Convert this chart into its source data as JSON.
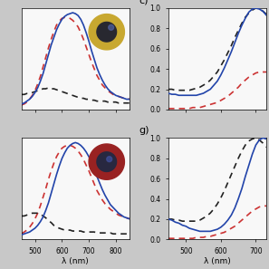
{
  "xlabel": "λ (nm)",
  "fig_bg": "#c8c8c8",
  "panel_bg": "#f8f8f8",
  "top_left": {
    "x": [
      450,
      460,
      470,
      480,
      490,
      500,
      510,
      520,
      530,
      540,
      550,
      560,
      570,
      580,
      590,
      600,
      610,
      620,
      630,
      640,
      650,
      660,
      670,
      680,
      690,
      700,
      710,
      720,
      730,
      740,
      750,
      760,
      770,
      780,
      790,
      800,
      810,
      820,
      830,
      840,
      850
    ],
    "blue_solid": [
      0.04,
      0.05,
      0.07,
      0.09,
      0.12,
      0.16,
      0.21,
      0.28,
      0.36,
      0.46,
      0.56,
      0.66,
      0.74,
      0.82,
      0.88,
      0.93,
      0.96,
      0.98,
      0.99,
      1.0,
      0.99,
      0.97,
      0.93,
      0.87,
      0.79,
      0.7,
      0.6,
      0.51,
      0.42,
      0.35,
      0.29,
      0.24,
      0.2,
      0.17,
      0.15,
      0.13,
      0.12,
      0.11,
      0.1,
      0.09,
      0.09
    ],
    "red_dashed": [
      0.03,
      0.04,
      0.06,
      0.09,
      0.13,
      0.18,
      0.25,
      0.33,
      0.43,
      0.53,
      0.63,
      0.72,
      0.8,
      0.87,
      0.91,
      0.94,
      0.95,
      0.95,
      0.94,
      0.92,
      0.89,
      0.85,
      0.79,
      0.72,
      0.64,
      0.56,
      0.48,
      0.41,
      0.34,
      0.29,
      0.24,
      0.21,
      0.18,
      0.16,
      0.14,
      0.13,
      0.12,
      0.11,
      0.1,
      0.1,
      0.09
    ],
    "black_dashed": [
      0.14,
      0.14,
      0.15,
      0.15,
      0.16,
      0.17,
      0.18,
      0.19,
      0.2,
      0.2,
      0.21,
      0.2,
      0.2,
      0.19,
      0.18,
      0.17,
      0.16,
      0.15,
      0.14,
      0.13,
      0.12,
      0.11,
      0.1,
      0.1,
      0.09,
      0.09,
      0.08,
      0.08,
      0.07,
      0.07,
      0.07,
      0.07,
      0.06,
      0.06,
      0.06,
      0.06,
      0.05,
      0.05,
      0.05,
      0.05,
      0.05
    ],
    "xlim": [
      450,
      850
    ],
    "xticks": [
      500,
      600,
      700,
      800
    ],
    "ylim": [
      null,
      null
    ],
    "show_yticks": false
  },
  "bottom_left": {
    "x": [
      450,
      460,
      470,
      480,
      490,
      500,
      510,
      520,
      530,
      540,
      550,
      560,
      570,
      580,
      590,
      600,
      610,
      620,
      630,
      640,
      650,
      660,
      670,
      680,
      690,
      700,
      710,
      720,
      730,
      740,
      750,
      760,
      770,
      780,
      790,
      800,
      810,
      820,
      830,
      840,
      850
    ],
    "blue_solid": [
      0.02,
      0.03,
      0.04,
      0.05,
      0.07,
      0.09,
      0.12,
      0.16,
      0.21,
      0.28,
      0.36,
      0.46,
      0.56,
      0.66,
      0.75,
      0.83,
      0.89,
      0.94,
      0.97,
      0.99,
      1.0,
      0.99,
      0.97,
      0.94,
      0.9,
      0.85,
      0.79,
      0.72,
      0.64,
      0.57,
      0.5,
      0.44,
      0.39,
      0.34,
      0.31,
      0.28,
      0.25,
      0.23,
      0.21,
      0.2,
      0.19
    ],
    "red_dashed": [
      0.03,
      0.05,
      0.07,
      0.1,
      0.14,
      0.19,
      0.25,
      0.33,
      0.42,
      0.51,
      0.61,
      0.7,
      0.78,
      0.85,
      0.9,
      0.94,
      0.96,
      0.97,
      0.97,
      0.96,
      0.94,
      0.91,
      0.87,
      0.82,
      0.76,
      0.7,
      0.63,
      0.56,
      0.49,
      0.44,
      0.39,
      0.35,
      0.32,
      0.29,
      0.27,
      0.25,
      0.23,
      0.22,
      0.21,
      0.2,
      0.19
    ],
    "black_dashed": [
      0.22,
      0.22,
      0.23,
      0.24,
      0.25,
      0.25,
      0.25,
      0.24,
      0.22,
      0.2,
      0.17,
      0.15,
      0.12,
      0.1,
      0.09,
      0.08,
      0.07,
      0.07,
      0.07,
      0.06,
      0.06,
      0.06,
      0.06,
      0.05,
      0.05,
      0.05,
      0.05,
      0.05,
      0.04,
      0.04,
      0.04,
      0.04,
      0.04,
      0.04,
      0.03,
      0.03,
      0.03,
      0.03,
      0.03,
      0.03,
      0.03
    ],
    "xlim": [
      450,
      850
    ],
    "xticks": [
      500,
      600,
      700,
      800
    ],
    "ylim": [
      null,
      null
    ],
    "show_yticks": false
  },
  "top_right": {
    "x": [
      450,
      460,
      470,
      480,
      490,
      500,
      510,
      520,
      530,
      540,
      550,
      560,
      570,
      580,
      590,
      600,
      610,
      620,
      630,
      640,
      650,
      660,
      670,
      680,
      690,
      700,
      710,
      720,
      730
    ],
    "blue_solid": [
      0.16,
      0.15,
      0.15,
      0.14,
      0.14,
      0.14,
      0.14,
      0.14,
      0.14,
      0.15,
      0.16,
      0.18,
      0.2,
      0.24,
      0.28,
      0.34,
      0.41,
      0.49,
      0.57,
      0.66,
      0.75,
      0.83,
      0.9,
      0.96,
      0.99,
      1.0,
      0.99,
      0.97,
      0.93
    ],
    "red_dashed": [
      0.01,
      0.01,
      0.01,
      0.01,
      0.01,
      0.01,
      0.01,
      0.02,
      0.02,
      0.02,
      0.03,
      0.04,
      0.05,
      0.06,
      0.07,
      0.09,
      0.11,
      0.13,
      0.16,
      0.19,
      0.22,
      0.26,
      0.29,
      0.32,
      0.34,
      0.36,
      0.37,
      0.37,
      0.37
    ],
    "black_dashed": [
      0.2,
      0.2,
      0.19,
      0.19,
      0.19,
      0.19,
      0.19,
      0.2,
      0.21,
      0.22,
      0.24,
      0.26,
      0.29,
      0.33,
      0.37,
      0.43,
      0.49,
      0.56,
      0.63,
      0.71,
      0.78,
      0.85,
      0.91,
      0.95,
      0.98,
      1.0,
      0.99,
      0.97,
      0.94
    ],
    "xlim": [
      450,
      730
    ],
    "xticks": [
      500,
      600,
      700
    ],
    "ylim": [
      0.0,
      1.0
    ],
    "yticks": [
      0.0,
      0.2,
      0.4,
      0.6,
      0.8,
      1.0
    ],
    "show_yticks": true
  },
  "bottom_right": {
    "x": [
      450,
      460,
      470,
      480,
      490,
      500,
      510,
      520,
      530,
      540,
      550,
      560,
      570,
      580,
      590,
      600,
      610,
      620,
      630,
      640,
      650,
      660,
      670,
      680,
      690,
      700,
      710,
      720,
      730
    ],
    "blue_solid": [
      0.2,
      0.19,
      0.17,
      0.16,
      0.14,
      0.13,
      0.11,
      0.1,
      0.09,
      0.08,
      0.08,
      0.08,
      0.08,
      0.09,
      0.1,
      0.12,
      0.15,
      0.19,
      0.24,
      0.31,
      0.4,
      0.5,
      0.62,
      0.73,
      0.84,
      0.93,
      0.98,
      1.0,
      0.99
    ],
    "red_dashed": [
      0.01,
      0.01,
      0.01,
      0.01,
      0.01,
      0.01,
      0.01,
      0.01,
      0.02,
      0.02,
      0.02,
      0.03,
      0.03,
      0.04,
      0.05,
      0.06,
      0.07,
      0.09,
      0.11,
      0.13,
      0.16,
      0.19,
      0.22,
      0.25,
      0.28,
      0.3,
      0.32,
      0.33,
      0.33
    ],
    "black_dashed": [
      0.2,
      0.2,
      0.19,
      0.19,
      0.18,
      0.18,
      0.18,
      0.18,
      0.18,
      0.19,
      0.21,
      0.23,
      0.26,
      0.3,
      0.35,
      0.41,
      0.48,
      0.56,
      0.64,
      0.72,
      0.8,
      0.87,
      0.93,
      0.97,
      0.99,
      1.0,
      0.98,
      0.95,
      0.91
    ],
    "xlim": [
      450,
      730
    ],
    "xticks": [
      500,
      600,
      700
    ],
    "ylim": [
      0.0,
      1.0
    ],
    "yticks": [
      0.0,
      0.2,
      0.4,
      0.6,
      0.8,
      1.0
    ],
    "show_yticks": true
  },
  "blue_color": "#2244aa",
  "red_color": "#cc3333",
  "black_color": "#222222",
  "line_width": 1.2,
  "dash_style_red": [
    4,
    3
  ],
  "dash_style_black": [
    4,
    3
  ],
  "inset_top": {
    "outer_color": "#c8a830",
    "inner_color": "#282830"
  },
  "inset_bottom": {
    "outer_color": "#992222",
    "inner_color": "#282840"
  }
}
